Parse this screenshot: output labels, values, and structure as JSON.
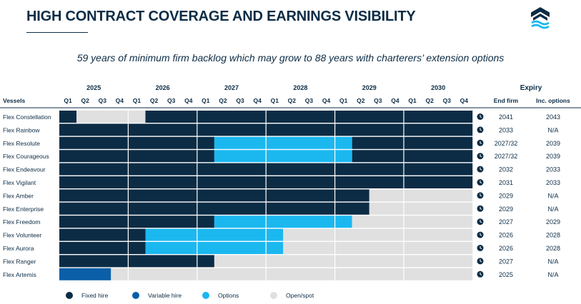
{
  "header": {
    "title": "HIGH CONTRACT COVERAGE AND EARNINGS VISIBILITY",
    "subtitle": "59 years of minimum firm backlog which may grow to 88 years with charterers’ extension options",
    "logo_icon": "flex-lng-logo-icon"
  },
  "colors": {
    "fixed": "#0c2c45",
    "variable": "#0a5fa8",
    "options": "#1bb8f0",
    "open": "#e0e0e0",
    "text": "#0c2c45"
  },
  "chart_data": {
    "type": "table",
    "years": [
      "2025",
      "2026",
      "2027",
      "2028",
      "2029",
      "2030"
    ],
    "quarters": [
      "Q1",
      "Q2",
      "Q3",
      "Q4"
    ],
    "vessels_label": "Vessels",
    "expiry_label": "Expiry",
    "end_firm_label": "End firm",
    "inc_options_label": "Inc. options",
    "status_icon": "clock-icon",
    "rows": [
      {
        "name": "Flex Constellation",
        "end_firm": "2041",
        "inc_options": "2043",
        "segments": [
          {
            "status": "fixed",
            "quarters": 1
          },
          {
            "status": "open",
            "quarters": 4
          },
          {
            "status": "fixed",
            "quarters": 19
          }
        ]
      },
      {
        "name": "Flex Rainbow",
        "end_firm": "2033",
        "inc_options": "N/A",
        "segments": [
          {
            "status": "fixed",
            "quarters": 24
          }
        ]
      },
      {
        "name": "Flex Resolute",
        "end_firm": "2027/32",
        "inc_options": "2039",
        "segments": [
          {
            "status": "fixed",
            "quarters": 9
          },
          {
            "status": "options",
            "quarters": 8
          },
          {
            "status": "fixed",
            "quarters": 7
          }
        ]
      },
      {
        "name": "Flex Courageous",
        "end_firm": "2027/32",
        "inc_options": "2039",
        "segments": [
          {
            "status": "fixed",
            "quarters": 9
          },
          {
            "status": "options",
            "quarters": 8
          },
          {
            "status": "fixed",
            "quarters": 7
          }
        ]
      },
      {
        "name": "Flex Endeavour",
        "end_firm": "2032",
        "inc_options": "2033",
        "segments": [
          {
            "status": "fixed",
            "quarters": 24
          }
        ]
      },
      {
        "name": "Flex Vigilant",
        "end_firm": "2031",
        "inc_options": "2033",
        "segments": [
          {
            "status": "fixed",
            "quarters": 24
          }
        ]
      },
      {
        "name": "Flex Amber",
        "end_firm": "2029",
        "inc_options": "N/A",
        "segments": [
          {
            "status": "fixed",
            "quarters": 18
          },
          {
            "status": "open",
            "quarters": 6
          }
        ]
      },
      {
        "name": "Flex Enterprise",
        "end_firm": "2029",
        "inc_options": "N/A",
        "segments": [
          {
            "status": "fixed",
            "quarters": 18
          },
          {
            "status": "open",
            "quarters": 6
          }
        ]
      },
      {
        "name": "Flex Freedom",
        "end_firm": "2027",
        "inc_options": "2029",
        "segments": [
          {
            "status": "fixed",
            "quarters": 9
          },
          {
            "status": "options",
            "quarters": 8
          },
          {
            "status": "open",
            "quarters": 7
          }
        ]
      },
      {
        "name": "Flex Volunteer",
        "end_firm": "2026",
        "inc_options": "2028",
        "segments": [
          {
            "status": "fixed",
            "quarters": 5
          },
          {
            "status": "options",
            "quarters": 8
          },
          {
            "status": "open",
            "quarters": 11
          }
        ]
      },
      {
        "name": "Flex Aurora",
        "end_firm": "2026",
        "inc_options": "2028",
        "segments": [
          {
            "status": "fixed",
            "quarters": 5
          },
          {
            "status": "options",
            "quarters": 8
          },
          {
            "status": "open",
            "quarters": 11
          }
        ]
      },
      {
        "name": "Flex Ranger",
        "end_firm": "2027",
        "inc_options": "N/A",
        "segments": [
          {
            "status": "fixed",
            "quarters": 9
          },
          {
            "status": "open",
            "quarters": 15
          }
        ]
      },
      {
        "name": "Flex Artemis",
        "end_firm": "2025",
        "inc_options": "N/A",
        "segments": [
          {
            "status": "variable",
            "quarters": 3
          },
          {
            "status": "open",
            "quarters": 21
          }
        ]
      }
    ],
    "legend": [
      {
        "status": "fixed",
        "label": "Fixed hire"
      },
      {
        "status": "variable",
        "label": "Variable hire"
      },
      {
        "status": "options",
        "label": "Options"
      },
      {
        "status": "open",
        "label": "Open/spot"
      }
    ]
  }
}
